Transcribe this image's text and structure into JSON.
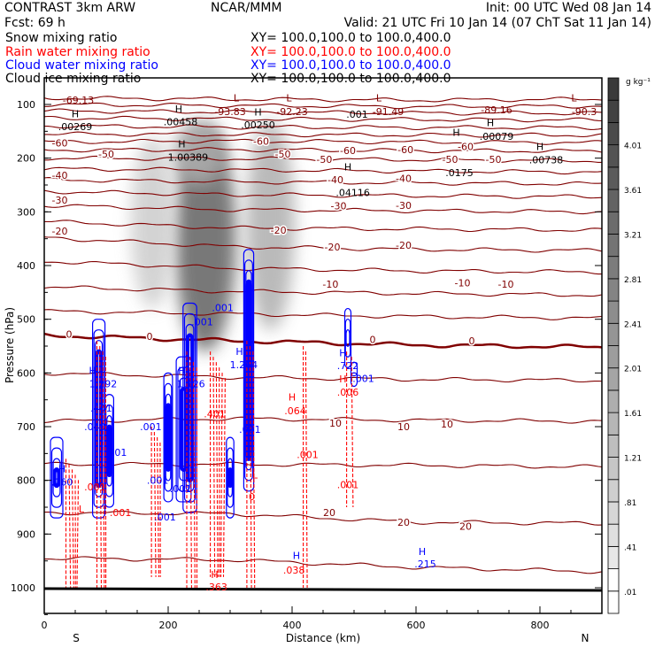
{
  "header": {
    "model": "CONTRAST  3km ARW",
    "org": "NCAR/MMM",
    "init": "Init: 00 UTC Wed 08 Jan 14",
    "fcst": "Fcst:    69 h",
    "valid": "Valid: 21 UTC Fri 10 Jan 14 (07 ChT Sat 11 Jan 14)",
    "fields": [
      {
        "name": "Snow mixing ratio",
        "xy": "XY= 100.0,100.0 to 100.0,400.0",
        "color": "#000000"
      },
      {
        "name": "Rain water mixing ratio",
        "xy": "XY= 100.0,100.0 to 100.0,400.0",
        "color": "#ff0000"
      },
      {
        "name": "Cloud water mixing ratio",
        "xy": "XY= 100.0,100.0 to 100.0,400.0",
        "color": "#0000ff"
      },
      {
        "name": "Cloud ice mixing ratio",
        "xy": "XY= 100.0,100.0 to 100.0,400.0",
        "color": "#000000"
      }
    ]
  },
  "chart_data": {
    "type": "cross-section",
    "xlabel": "Distance (km)",
    "ylabel": "Pressure (hPa)",
    "xlim": [
      0,
      900
    ],
    "ylim": [
      1050,
      50
    ],
    "xticks": [
      "0",
      "200",
      "400",
      "600",
      "800"
    ],
    "xtick_values": [
      0,
      200,
      400,
      600,
      800
    ],
    "yticks": [
      "100",
      "200",
      "300",
      "400",
      "500",
      "600",
      "700",
      "800",
      "900",
      "1000"
    ],
    "ytick_values": [
      100,
      200,
      300,
      400,
      500,
      600,
      700,
      800,
      900,
      1000
    ],
    "x_end_labels": {
      "left": "S",
      "right": "N"
    },
    "colorbar": {
      "units": "g kg⁻¹",
      "labels": [
        ".01",
        ".41",
        ".81",
        "1.21",
        "1.61",
        "2.01",
        "2.41",
        "2.81",
        "3.21",
        "3.61",
        "4.01"
      ],
      "min": 0.01,
      "step": 0.2,
      "nbins": 24
    },
    "isotherms": {
      "color": "#800000",
      "x_km": [
        0,
        300,
        600,
        900
      ],
      "levels": [
        {
          "t": -90,
          "p": [
            88,
            90,
            92,
            90
          ]
        },
        {
          "t": -85,
          "p": [
            100,
            102,
            104,
            103
          ]
        },
        {
          "t": -80,
          "p": [
            112,
            114,
            116,
            116
          ]
        },
        {
          "t": -75,
          "p": [
            125,
            127,
            128,
            129
          ]
        },
        {
          "t": -70,
          "p": [
            140,
            142,
            143,
            143
          ]
        },
        {
          "t": -65,
          "p": [
            155,
            156,
            157,
            157
          ]
        },
        {
          "t": -60,
          "p": [
            170,
            168,
            170,
            171
          ]
        },
        {
          "t": -55,
          "p": [
            185,
            184,
            186,
            187
          ]
        },
        {
          "t": -50,
          "p": [
            200,
            201,
            203,
            205
          ]
        },
        {
          "t": -45,
          "p": [
            220,
            222,
            224,
            226
          ]
        },
        {
          "t": -40,
          "p": [
            240,
            244,
            246,
            248
          ]
        },
        {
          "t": -35,
          "p": [
            262,
            268,
            270,
            272
          ]
        },
        {
          "t": -30,
          "p": [
            288,
            296,
            298,
            300
          ]
        },
        {
          "t": -25,
          "p": [
            318,
            330,
            332,
            334
          ]
        },
        {
          "t": -20,
          "p": [
            348,
            365,
            370,
            372
          ]
        },
        {
          "t": -15,
          "p": [
            392,
            405,
            410,
            412
          ]
        },
        {
          "t": -10,
          "p": [
            440,
            448,
            452,
            455
          ]
        },
        {
          "t": -5,
          "p": [
            485,
            490,
            495,
            498
          ]
        },
        {
          "t": 0,
          "p": [
            530,
            540,
            548,
            552
          ]
        },
        {
          "t": 5,
          "p": [
            600,
            608,
            612,
            614
          ]
        },
        {
          "t": 10,
          "p": [
            690,
            685,
            688,
            690
          ]
        },
        {
          "t": 15,
          "p": [
            770,
            770,
            772,
            775
          ]
        },
        {
          "t": 20,
          "p": [
            860,
            862,
            878,
            880
          ]
        },
        {
          "t": 25,
          "p": [
            945,
            948,
            962,
            970
          ]
        }
      ],
      "labels": [
        {
          "text": "-60",
          "km": 25,
          "p": 172
        },
        {
          "text": "-50",
          "km": 100,
          "p": 192
        },
        {
          "text": "-40",
          "km": 25,
          "p": 232
        },
        {
          "text": "-30",
          "km": 25,
          "p": 278
        },
        {
          "text": "-20",
          "km": 25,
          "p": 336
        },
        {
          "text": "-60",
          "km": 350,
          "p": 168
        },
        {
          "text": "-50",
          "km": 385,
          "p": 192
        },
        {
          "text": "-20",
          "km": 378,
          "p": 334
        },
        {
          "text": "-10",
          "km": 462,
          "p": 435
        },
        {
          "text": "0",
          "km": 40,
          "p": 528
        },
        {
          "text": "0",
          "km": 170,
          "p": 532
        },
        {
          "text": "0",
          "km": 690,
          "p": 540
        },
        {
          "text": "-60",
          "km": 490,
          "p": 186
        },
        {
          "text": "-50",
          "km": 452,
          "p": 202
        },
        {
          "text": "-40",
          "km": 470,
          "p": 240
        },
        {
          "text": "-30",
          "km": 475,
          "p": 289
        },
        {
          "text": "-20",
          "km": 465,
          "p": 365
        },
        {
          "text": "-60",
          "km": 583,
          "p": 184
        },
        {
          "text": "-50",
          "km": 655,
          "p": 202
        },
        {
          "text": "-40",
          "km": 580,
          "p": 238
        },
        {
          "text": "-30",
          "km": 580,
          "p": 288
        },
        {
          "text": "-20",
          "km": 580,
          "p": 362
        },
        {
          "text": "-60",
          "km": 680,
          "p": 178
        },
        {
          "text": "-50",
          "km": 725,
          "p": 202
        },
        {
          "text": "-10",
          "km": 675,
          "p": 432
        },
        {
          "text": "-10",
          "km": 745,
          "p": 435
        },
        {
          "text": "0",
          "km": 530,
          "p": 538
        },
        {
          "text": "10",
          "km": 470,
          "p": 693
        },
        {
          "text": "10",
          "km": 580,
          "p": 700
        },
        {
          "text": "10",
          "km": 650,
          "p": 695
        },
        {
          "text": "20",
          "km": 460,
          "p": 860
        },
        {
          "text": "20",
          "km": 580,
          "p": 878
        },
        {
          "text": "20",
          "km": 680,
          "p": 885
        }
      ]
    },
    "snow_cores": [
      {
        "km": 260,
        "p_top": 140,
        "p_bot": 560,
        "max": 3.2
      },
      {
        "km": 365,
        "p_top": 130,
        "p_bot": 520,
        "max": 1.4
      },
      {
        "km": 175,
        "p_top": 160,
        "p_bot": 480,
        "max": 0.7
      },
      {
        "km": 250,
        "p_top": 130,
        "p_bot": 250,
        "max": 1.6
      }
    ],
    "cloud_water_cells": [
      {
        "km": 88,
        "p_top": 500,
        "p_bot": 870,
        "width_km": 20
      },
      {
        "km": 105,
        "p_top": 640,
        "p_bot": 850,
        "width_km": 14
      },
      {
        "km": 235,
        "p_top": 470,
        "p_bot": 860,
        "width_km": 22
      },
      {
        "km": 225,
        "p_top": 570,
        "p_bot": 840,
        "width_km": 24
      },
      {
        "km": 330,
        "p_top": 370,
        "p_bot": 820,
        "width_km": 16
      },
      {
        "km": 300,
        "p_top": 720,
        "p_bot": 870,
        "width_km": 12
      },
      {
        "km": 490,
        "p_top": 480,
        "p_bot": 590,
        "width_km": 10
      },
      {
        "km": 500,
        "p_top": 580,
        "p_bot": 625,
        "width_km": 10
      },
      {
        "km": 20,
        "p_top": 720,
        "p_bot": 870,
        "width_km": 20
      },
      {
        "km": 200,
        "p_top": 600,
        "p_bot": 840,
        "width_km": 14
      }
    ],
    "rain_water_cells": [
      {
        "km": 92,
        "p_top": 540,
        "p_bot": 1000,
        "width_km": 14
      },
      {
        "km": 238,
        "p_top": 560,
        "p_bot": 1000,
        "width_km": 16
      },
      {
        "km": 332,
        "p_top": 540,
        "p_bot": 1000,
        "width_km": 10
      },
      {
        "km": 280,
        "p_top": 560,
        "p_bot": 980,
        "width_km": 24
      },
      {
        "km": 420,
        "p_top": 550,
        "p_bot": 1000,
        "width_km": 4
      },
      {
        "km": 492,
        "p_top": 560,
        "p_bot": 850,
        "width_km": 8
      },
      {
        "km": 45,
        "p_top": 760,
        "p_bot": 1000,
        "width_km": 20
      },
      {
        "km": 180,
        "p_top": 700,
        "p_bot": 980,
        "width_km": 14
      }
    ],
    "annotations": [
      {
        "text": "-69.13",
        "km": 55,
        "p": 92,
        "color": "#800000"
      },
      {
        "text": "L",
        "km": 310,
        "p": 88,
        "color": "#800000"
      },
      {
        "text": "-93.83",
        "km": 300,
        "p": 103,
        "color": "#800000"
      },
      {
        "text": "L",
        "km": 395,
        "p": 88,
        "color": "#800000"
      },
      {
        "text": "-92.23",
        "km": 400,
        "p": 97,
        "color": "#800000"
      },
      {
        "text": "L",
        "km": 540,
        "p": 88,
        "color": "#800000"
      },
      {
        "text": "-91.49",
        "km": 555,
        "p": 107,
        "color": "#800000"
      },
      {
        "text": "-89.16",
        "km": 730,
        "p": 110,
        "color": "#800000"
      },
      {
        "text": "L",
        "km": 855,
        "p": 88,
        "color": "#800000"
      },
      {
        "text": "-90.3",
        "km": 880,
        "p": 107,
        "color": "#800000"
      },
      {
        "text": "H",
        "km": 50,
        "p": 114,
        "color": "#000000"
      },
      {
        "text": ".00269",
        "km": 50,
        "p": 128,
        "color": "#000000"
      },
      {
        "text": "H",
        "km": 217,
        "p": 108,
        "color": "#000000"
      },
      {
        "text": ".00458",
        "km": 220,
        "p": 122,
        "color": "#000000"
      },
      {
        "text": "H",
        "km": 345,
        "p": 114,
        "color": "#000000"
      },
      {
        "text": ".00250",
        "km": 345,
        "p": 131,
        "color": "#000000"
      },
      {
        "text": "H",
        "km": 222,
        "p": 173,
        "color": "#000000"
      },
      {
        "text": "1.00389",
        "km": 232,
        "p": 188,
        "color": "#000000"
      },
      {
        "text": ".001",
        "km": 505,
        "p": 118,
        "color": "#000000"
      },
      {
        "text": "H",
        "km": 720,
        "p": 117,
        "color": "#000000"
      },
      {
        "text": ".00079",
        "km": 730,
        "p": 130,
        "color": "#000000"
      },
      {
        "text": "H",
        "km": 490,
        "p": 223,
        "color": "#000000"
      },
      {
        "text": ".04116",
        "km": 498,
        "p": 238,
        "color": "#000000"
      },
      {
        "text": "H",
        "km": 665,
        "p": 182,
        "color": "#000000"
      },
      {
        "text": ".0175",
        "km": 670,
        "p": 197,
        "color": "#000000"
      },
      {
        "text": "H",
        "km": 800,
        "p": 178,
        "color": "#000000"
      },
      {
        "text": ".00738",
        "km": 810,
        "p": 193,
        "color": "#000000"
      },
      {
        "text": ".001",
        "km": 288,
        "p": 478,
        "color": "#0000ff"
      },
      {
        "text": ".001",
        "km": 255,
        "p": 505,
        "color": "#0000ff"
      },
      {
        "text": "H",
        "km": 315,
        "p": 560,
        "color": "#0000ff"
      },
      {
        "text": "1.264",
        "km": 322,
        "p": 578,
        "color": "#0000ff"
      },
      {
        "text": "H",
        "km": 78,
        "p": 595,
        "color": "#0000ff"
      },
      {
        "text": "1.292",
        "km": 95,
        "p": 610,
        "color": "#0000ff"
      },
      {
        "text": "H",
        "km": 222,
        "p": 595,
        "color": "#0000ff"
      },
      {
        "text": "1.126",
        "km": 237,
        "p": 610,
        "color": "#0000ff"
      },
      {
        "text": ".401",
        "km": 92,
        "p": 665,
        "color": "#0000ff"
      },
      {
        "text": ".040",
        "km": 82,
        "p": 700,
        "color": "#0000ff"
      },
      {
        "text": ".401",
        "km": 116,
        "p": 748,
        "color": "#0000ff"
      },
      {
        "text": ".001",
        "km": 172,
        "p": 700,
        "color": "#0000ff"
      },
      {
        "text": ".001",
        "km": 332,
        "p": 705,
        "color": "#0000ff"
      },
      {
        "text": ".001",
        "km": 183,
        "p": 800,
        "color": "#0000ff"
      },
      {
        "text": ".001",
        "km": 220,
        "p": 815,
        "color": "#0000ff"
      },
      {
        "text": ".001",
        "km": 195,
        "p": 868,
        "color": "#0000ff"
      },
      {
        "text": "H",
        "km": 20,
        "p": 778,
        "color": "#0000ff"
      },
      {
        "text": ".160",
        "km": 25,
        "p": 796,
        "color": "#0000ff"
      },
      {
        "text": "H",
        "km": 482,
        "p": 562,
        "color": "#0000ff"
      },
      {
        "text": ".722",
        "km": 490,
        "p": 580,
        "color": "#0000ff"
      },
      {
        "text": ".001",
        "km": 515,
        "p": 607,
        "color": "#0000ff"
      },
      {
        "text": "H",
        "km": 407,
        "p": 940,
        "color": "#0000ff"
      },
      {
        "text": "H",
        "km": 610,
        "p": 932,
        "color": "#0000ff"
      },
      {
        "text": ".215",
        "km": 615,
        "p": 952,
        "color": "#0000ff"
      },
      {
        "text": "H",
        "km": 482,
        "p": 598,
        "color": "#ff0000"
      },
      {
        "text": ".006",
        "km": 490,
        "p": 613,
        "color": "#ff0000"
      },
      {
        "text": "H",
        "km": 400,
        "p": 645,
        "color": "#ff0000"
      },
      {
        "text": ".064",
        "km": 405,
        "p": 660,
        "color": "#ff0000"
      },
      {
        "text": ".401",
        "km": 275,
        "p": 676,
        "color": "#ff0000"
      },
      {
        "text": ".001",
        "km": 425,
        "p": 752,
        "color": "#ff0000"
      },
      {
        "text": ".001",
        "km": 490,
        "p": 808,
        "color": "#ff0000"
      },
      {
        "text": ".001",
        "km": 82,
        "p": 812,
        "color": "#ff0000"
      },
      {
        "text": ".001",
        "km": 123,
        "p": 860,
        "color": "#ff0000"
      },
      {
        "text": "L",
        "km": 60,
        "p": 853,
        "color": "#ff0000"
      },
      {
        "text": "L",
        "km": 340,
        "p": 790,
        "color": "#ff0000"
      },
      {
        "text": "0",
        "km": 335,
        "p": 830,
        "color": "#ff0000"
      },
      {
        "text": "H",
        "km": 275,
        "p": 975,
        "color": "#ff0000"
      },
      {
        "text": ".363",
        "km": 278,
        "p": 992,
        "color": "#ff0000"
      },
      {
        "text": ".038",
        "km": 403,
        "p": 967,
        "color": "#ff0000"
      }
    ]
  }
}
